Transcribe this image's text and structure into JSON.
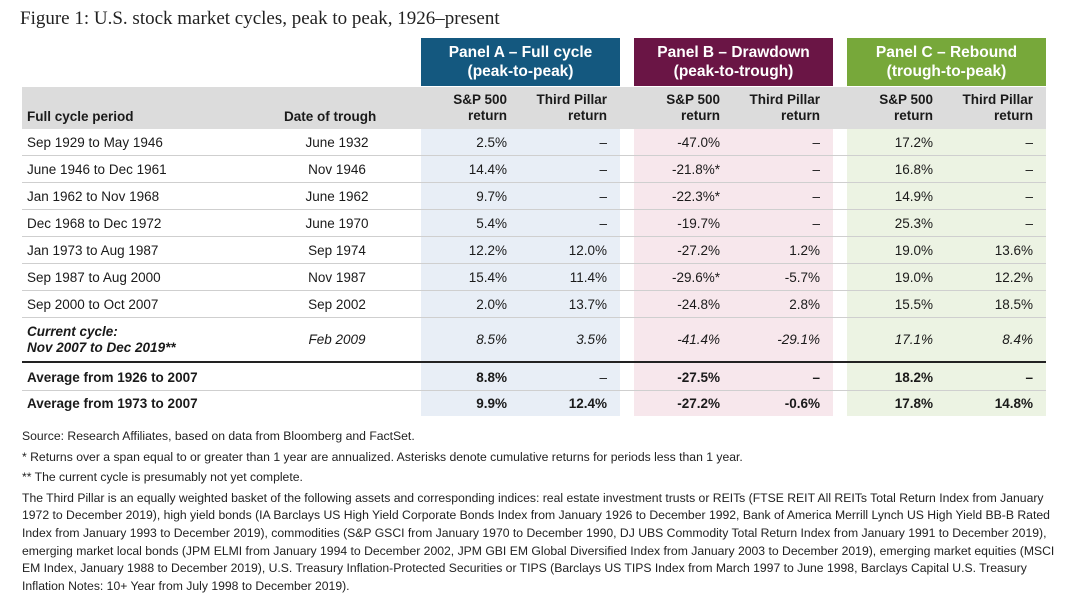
{
  "title": "Figure 1: U.S. stock market cycles, peak to peak, 1926–present",
  "panels": {
    "a": {
      "line1": "Panel A – Full cycle",
      "line2": "(peak-to-peak)"
    },
    "b": {
      "line1": "Panel B – Drawdown",
      "line2": "(peak-to-trough)"
    },
    "c": {
      "line1": "Panel C – Rebound",
      "line2": "(trough-to-peak)"
    }
  },
  "colors": {
    "panel_a": "#14587f",
    "panel_b": "#6a1545",
    "panel_c": "#77a83a"
  },
  "columns": {
    "period": "Full cycle period",
    "trough": "Date of trough",
    "sp_line1": "S&P 500",
    "sp_line2": "return",
    "tp_line1": "Third Pillar",
    "tp_line2": "return"
  },
  "rows": [
    {
      "period": "Sep 1929 to May 1946",
      "trough": "June 1932",
      "a_sp": "2.5%",
      "a_tp": "–",
      "b_sp": "-47.0%",
      "b_tp": "–",
      "c_sp": "17.2%",
      "c_tp": "–"
    },
    {
      "period": "June 1946 to Dec 1961",
      "trough": "Nov 1946",
      "a_sp": "14.4%",
      "a_tp": "–",
      "b_sp": "-21.8%*",
      "b_tp": "–",
      "c_sp": "16.8%",
      "c_tp": "–"
    },
    {
      "period": "Jan 1962 to Nov 1968",
      "trough": "June 1962",
      "a_sp": "9.7%",
      "a_tp": "–",
      "b_sp": "-22.3%*",
      "b_tp": "–",
      "c_sp": "14.9%",
      "c_tp": "–"
    },
    {
      "period": "Dec 1968 to Dec 1972",
      "trough": "June 1970",
      "a_sp": "5.4%",
      "a_tp": "–",
      "b_sp": "-19.7%",
      "b_tp": "–",
      "c_sp": "25.3%",
      "c_tp": "–"
    },
    {
      "period": "Jan 1973 to Aug 1987",
      "trough": "Sep 1974",
      "a_sp": "12.2%",
      "a_tp": "12.0%",
      "b_sp": "-27.2%",
      "b_tp": "1.2%",
      "c_sp": "19.0%",
      "c_tp": "13.6%"
    },
    {
      "period": "Sep 1987 to Aug 2000",
      "trough": "Nov 1987",
      "a_sp": "15.4%",
      "a_tp": "11.4%",
      "b_sp": "-29.6%*",
      "b_tp": "-5.7%",
      "c_sp": "19.0%",
      "c_tp": "12.2%"
    },
    {
      "period": "Sep 2000 to Oct 2007",
      "trough": "Sep 2002",
      "a_sp": "2.0%",
      "a_tp": "13.7%",
      "b_sp": "-24.8%",
      "b_tp": "2.8%",
      "c_sp": "15.5%",
      "c_tp": "18.5%"
    }
  ],
  "current": {
    "period_line1": "Current cycle:",
    "period_line2": "Nov 2007 to Dec 2019**",
    "trough": "Feb 2009",
    "a_sp": "8.5%",
    "a_tp": "3.5%",
    "b_sp": "-41.4%",
    "b_tp": "-29.1%",
    "c_sp": "17.1%",
    "c_tp": "8.4%"
  },
  "averages": [
    {
      "label": "Average from 1926 to 2007",
      "a_sp": "8.8%",
      "a_tp": "–",
      "b_sp": "-27.5%",
      "b_tp": "–",
      "c_sp": "18.2%",
      "c_tp": "–"
    },
    {
      "label": "Average from 1973 to 2007",
      "a_sp": "9.9%",
      "a_tp": "12.4%",
      "b_sp": "-27.2%",
      "b_tp": "-0.6%",
      "c_sp": "17.8%",
      "c_tp": "14.8%"
    }
  ],
  "notes": [
    "Source: Research Affiliates, based on data from Bloomberg and FactSet.",
    "* Returns over a span equal to or greater than 1 year are annualized. Asterisks denote cumulative returns for periods less than 1 year.",
    "** The current cycle is presumably not yet complete.",
    "The Third Pillar is an equally weighted basket of the following assets and corresponding indices: real estate investment trusts or REITs (FTSE REIT All REITs Total Return Index from January 1972 to December 2019), high yield bonds (IA Barclays US High Yield Corporate Bonds Index from January 1926 to December 1992, Bank of America Merrill Lynch US High Yield BB-B Rated Index from January 1993 to December 2019), commodities (S&P GSCI from January 1970 to December 1990, DJ UBS Commodity Total Return Index from January 1991 to December 2019), emerging market local bonds (JPM ELMI from January 1994 to December 2002, JPM GBI EM Global Diversified Index from January 2003 to December 2019), emerging market equities (MSCI EM Index, January 1988 to December 2019), U.S. Treasury Inflation-Protected Securities or TIPS (Barclays US TIPS Index from March 1997 to June 1998, Barclays Capital U.S. Treasury Inflation Notes: 10+ Year from July 1998 to December 2019)."
  ]
}
